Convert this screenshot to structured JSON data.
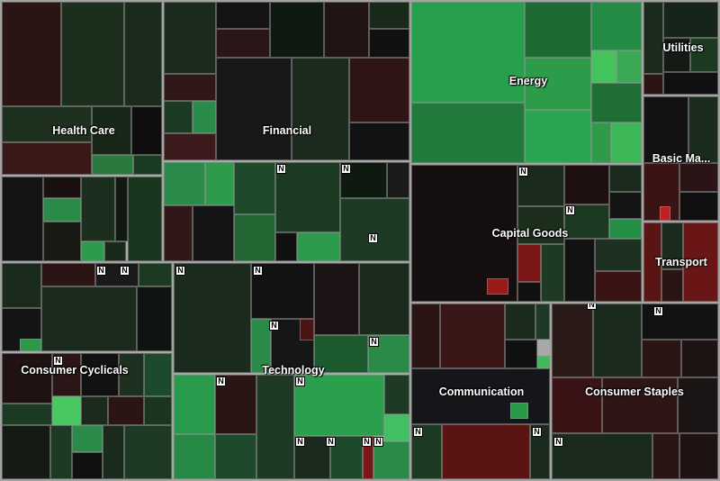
{
  "chart_data": {
    "type": "heatmap",
    "title": "",
    "sectors": [
      {
        "name": "Health Care",
        "color": "#1c2e1e",
        "news": 0
      },
      {
        "name": "Financial",
        "color": "#1a1f1a",
        "news": 3
      },
      {
        "name": "Energy",
        "color": "#2a9a49",
        "news": 0
      },
      {
        "name": "Utilities",
        "color": "#16251a",
        "news": 0
      },
      {
        "name": "Basic Ma...",
        "color": "#1c1414",
        "news": 0
      },
      {
        "name": "Capital Goods",
        "color": "#140e0e",
        "news": 2
      },
      {
        "name": "Transport",
        "color": "#5a1414",
        "news": 0
      },
      {
        "name": "Consumer Cyclicals",
        "color": "#1a2a1c",
        "news": 3
      },
      {
        "name": "Technology",
        "color": "#1f3a24",
        "news": 11
      },
      {
        "name": "Communication",
        "color": "#15161a",
        "news": 2
      },
      {
        "name": "Consumer Staples",
        "color": "#2a1a18",
        "news": 3
      }
    ],
    "news_marker": "N"
  }
}
